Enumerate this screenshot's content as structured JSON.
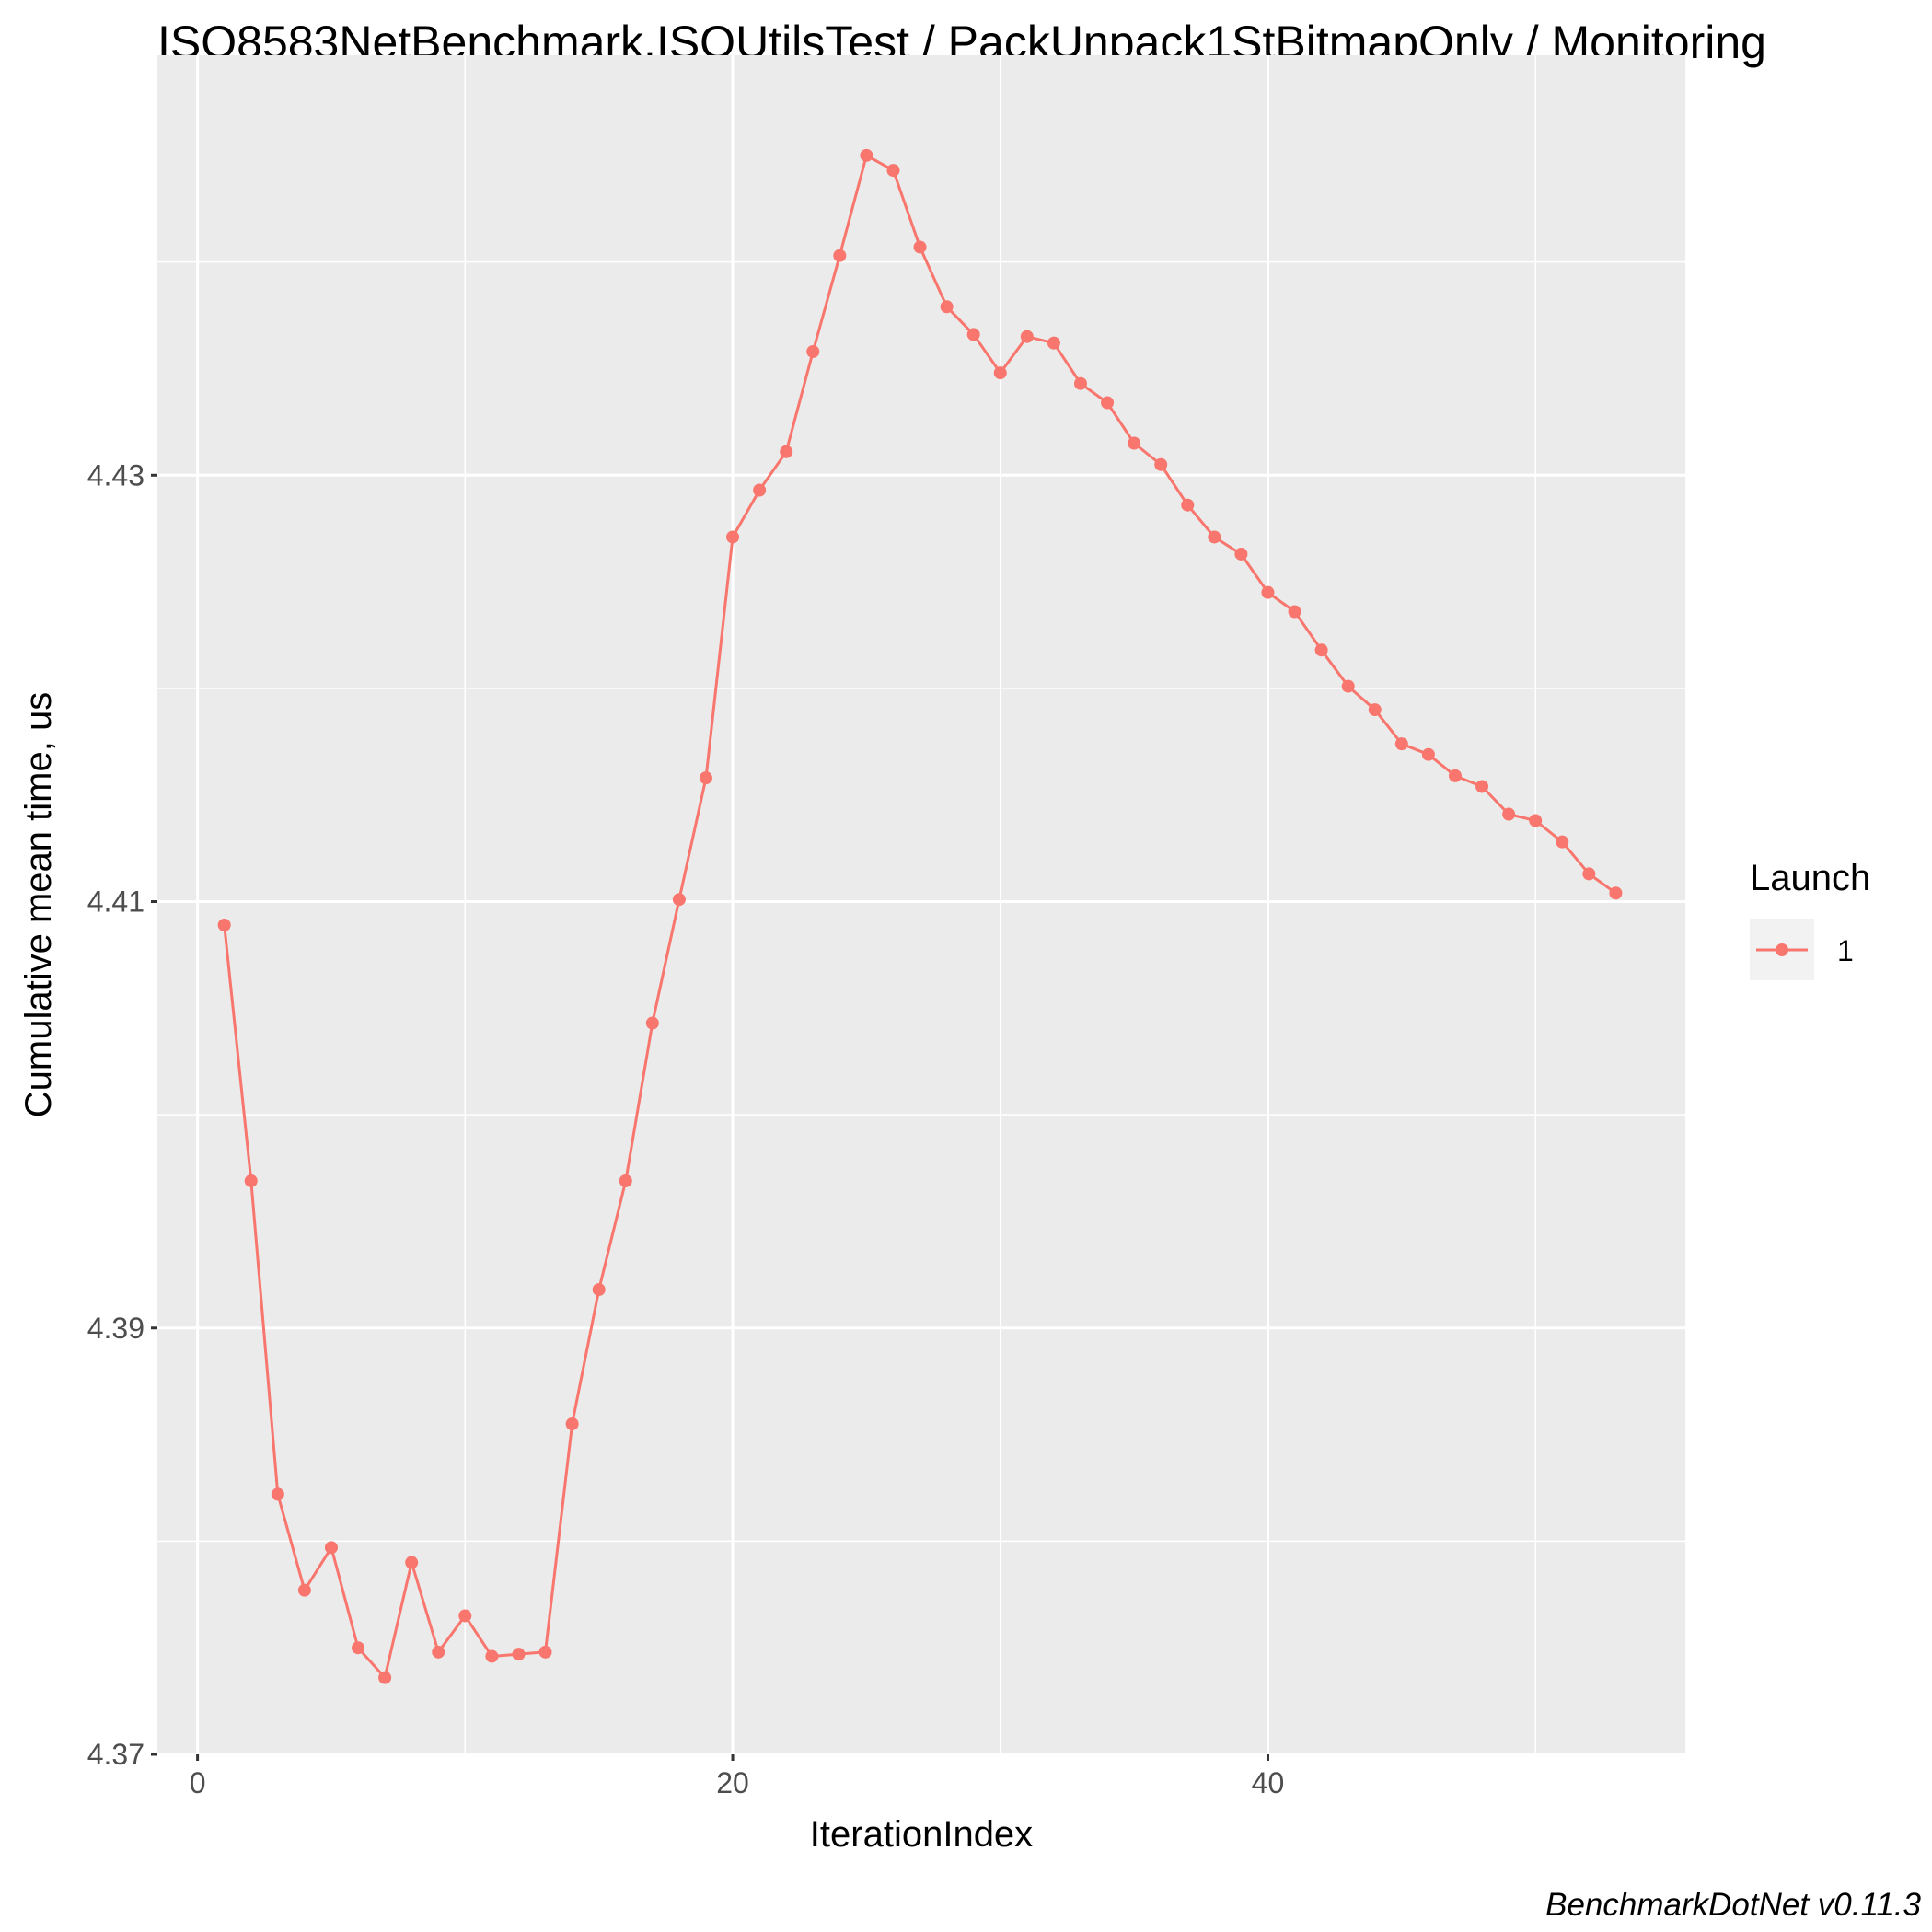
{
  "chart_data": {
    "type": "line",
    "title": "ISO8583NetBenchmark.ISOUtilsTest / PackUnpack1StBitmapOnly / Monitoring",
    "xlabel": "IterationIndex",
    "ylabel": "Cumulative mean time, us",
    "caption": "BenchmarkDotNet v0.11.3",
    "xlim": [
      -1.5,
      55.6
    ],
    "ylim": [
      4.37,
      4.4497
    ],
    "x_ticks": [
      0,
      20,
      40
    ],
    "x_tick_labels": [
      "0",
      "20",
      "40"
    ],
    "y_ticks": [
      4.37,
      4.39,
      4.41,
      4.43
    ],
    "y_tick_labels": [
      "4.37",
      "4.39",
      "4.41",
      "4.43"
    ],
    "grid": true,
    "legend": {
      "title": "Launch",
      "position": "right"
    },
    "series": [
      {
        "name": "1",
        "color": "#F8766D",
        "x": [
          1,
          2,
          3,
          4,
          5,
          6,
          7,
          8,
          9,
          10,
          11,
          12,
          13,
          14,
          15,
          16,
          17,
          18,
          19,
          20,
          21,
          22,
          23,
          24,
          25,
          26,
          27,
          28,
          29,
          30,
          31,
          32,
          33,
          34,
          35,
          36,
          37,
          38,
          39,
          40,
          41,
          42,
          43,
          44,
          45,
          46,
          47,
          48,
          49,
          50,
          51,
          52,
          53
        ],
        "values": [
          4.4089,
          4.3969,
          4.3822,
          4.3777,
          4.3797,
          4.375,
          4.3736,
          4.379,
          4.3748,
          4.3765,
          4.3746,
          4.3747,
          4.3748,
          4.3855,
          4.3918,
          4.3969,
          4.4043,
          4.4101,
          4.4158,
          4.4271,
          4.4293,
          4.4311,
          4.4358,
          4.4403,
          4.445,
          4.4443,
          4.4407,
          4.4379,
          4.4366,
          4.4348,
          4.4365,
          4.4362,
          4.4343,
          4.4334,
          4.4315,
          4.4305,
          4.4286,
          4.4271,
          4.4263,
          4.4245,
          4.4236,
          4.4218,
          4.4201,
          4.419,
          4.4174,
          4.4169,
          4.4159,
          4.4154,
          4.4141,
          4.4138,
          4.4128,
          4.4113,
          4.4104
        ]
      }
    ]
  }
}
